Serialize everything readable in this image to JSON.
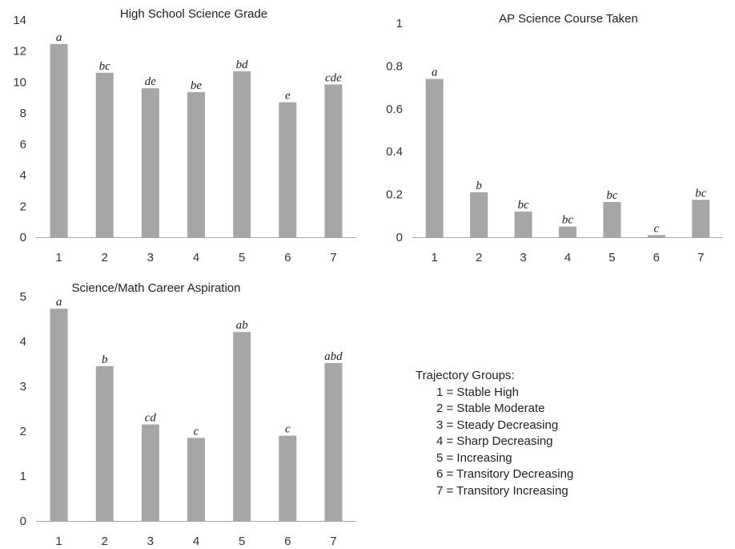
{
  "chart_data": [
    {
      "id": "hs-grade",
      "type": "bar",
      "title": "High School Science Grade",
      "categories": [
        "1",
        "2",
        "3",
        "4",
        "5",
        "6",
        "7"
      ],
      "values": [
        12.45,
        10.6,
        9.6,
        9.35,
        10.7,
        8.7,
        9.85
      ],
      "labels": [
        "a",
        "bc",
        "de",
        "be",
        "bd",
        "e",
        "cde"
      ],
      "ylim": [
        0,
        14
      ],
      "yticks": [
        "0",
        "2",
        "4",
        "6",
        "8",
        "10",
        "12",
        "14"
      ],
      "grid": false,
      "color": "#a6a6a6"
    },
    {
      "id": "ap-course",
      "type": "bar",
      "title": "AP Science Course Taken",
      "categories": [
        "1",
        "2",
        "3",
        "4",
        "5",
        "6",
        "7"
      ],
      "values": [
        0.74,
        0.21,
        0.12,
        0.05,
        0.165,
        0.01,
        0.175
      ],
      "labels": [
        "a",
        "b",
        "bc",
        "bc",
        "bc",
        "c",
        "bc"
      ],
      "ylim": [
        0,
        1
      ],
      "yticks": [
        "0",
        "0.2",
        "0.4",
        "0.6",
        "0.8",
        "1"
      ],
      "grid": false,
      "color": "#a6a6a6"
    },
    {
      "id": "career",
      "type": "bar",
      "title": "Science/Math Career Aspiration",
      "categories": [
        "1",
        "2",
        "3",
        "4",
        "5",
        "6",
        "7"
      ],
      "values": [
        4.73,
        3.45,
        2.15,
        1.85,
        4.21,
        1.9,
        3.52
      ],
      "labels": [
        "a",
        "b",
        "cd",
        "c",
        "ab",
        "c",
        "abd"
      ],
      "ylim": [
        0,
        5
      ],
      "yticks": [
        "0",
        "1",
        "2",
        "3",
        "4",
        "5"
      ],
      "grid": false,
      "color": "#a6a6a6"
    }
  ],
  "legend": {
    "title": "Trajectory Groups:",
    "items": [
      "1 = Stable High",
      "2 = Stable Moderate",
      "3 = Steady Decreasing",
      "4 = Sharp Decreasing",
      "5 = Increasing",
      "6 = Transitory Decreasing",
      "7 = Transitory Increasing"
    ]
  }
}
